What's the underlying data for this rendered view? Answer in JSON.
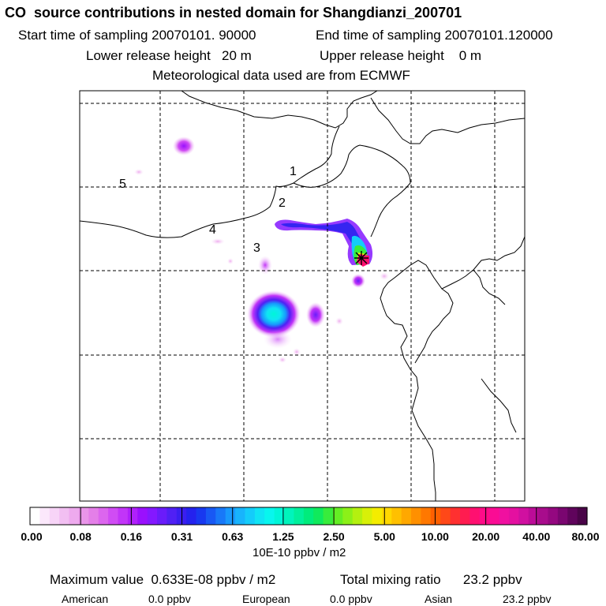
{
  "header": {
    "title": "CO  source contributions in nested domain for Shangdianzi_200701",
    "start": "Start time of sampling 20070101. 90000",
    "end": "End time of sampling 20070101.120000",
    "lower": "Lower release height   20 m",
    "upper": "Upper release height    0 m",
    "met": "Meteorological data used are from ECMWF"
  },
  "chart_data": {
    "type": "heatmap",
    "title": "CO  source contributions in nested domain for Shangdianzi_200701",
    "map_labels": [
      "1",
      "2",
      "3",
      "4",
      "5"
    ],
    "receptor_marker": "asterisk",
    "grid": true,
    "colorbar": {
      "tick_labels": [
        "0.00",
        "0.08",
        "0.16",
        "0.31",
        "0.63",
        "1.25",
        "2.50",
        "5.00",
        "10.00",
        "20.00",
        "40.00",
        "80.00"
      ],
      "units": "10E-10 ppbv / m2",
      "colors": [
        "#ffffff",
        "#fbe8fb",
        "#f7d4f7",
        "#f2bff2",
        "#eeaaee",
        "#e995e9",
        "#e47fe8",
        "#dc66ee",
        "#d04cf4",
        "#c235f8",
        "#b020fb",
        "#9a10fd",
        "#8418ff",
        "#6a1cfa",
        "#5020f4",
        "#3a1ef0",
        "#2422ee",
        "#1838f0",
        "#1858f4",
        "#1878f8",
        "#1898fc",
        "#18b4fc",
        "#14ccfa",
        "#10e4f4",
        "#08f6ee",
        "#00f6d8",
        "#00f4bc",
        "#00f09c",
        "#00ec7c",
        "#10ea5c",
        "#38ec3c",
        "#64ee24",
        "#8cf018",
        "#b4f010",
        "#d8f008",
        "#f4ec00",
        "#ffd800",
        "#ffc000",
        "#ffa800",
        "#ff9000",
        "#ff7800",
        "#ff6000",
        "#ff4818",
        "#ff3030",
        "#ff1c50",
        "#ff1070",
        "#ff0c88",
        "#fa0c94",
        "#f010a0",
        "#e410a0",
        "#d010a0",
        "#bc0c98",
        "#a80c8c",
        "#940880",
        "#7a0670",
        "#60045c",
        "#4a0448"
      ]
    },
    "plumes": [
      {
        "name": "northwest patch",
        "level": 0.16
      },
      {
        "name": "receptor plume",
        "level": 40.0
      },
      {
        "name": "southern hotspot",
        "level": 1.25
      },
      {
        "name": "southeast patch",
        "level": 0.31
      }
    ]
  },
  "footer": {
    "max_label": "Maximum value  0.633E-08 ppbv / m2",
    "total_label": "Total mixing ratio      23.2 ppbv",
    "american": "American",
    "american_val": "0.0 ppbv",
    "european": "European",
    "european_val": "0.0 ppbv",
    "asian": "Asian",
    "asian_val": "23.2 ppbv"
  }
}
